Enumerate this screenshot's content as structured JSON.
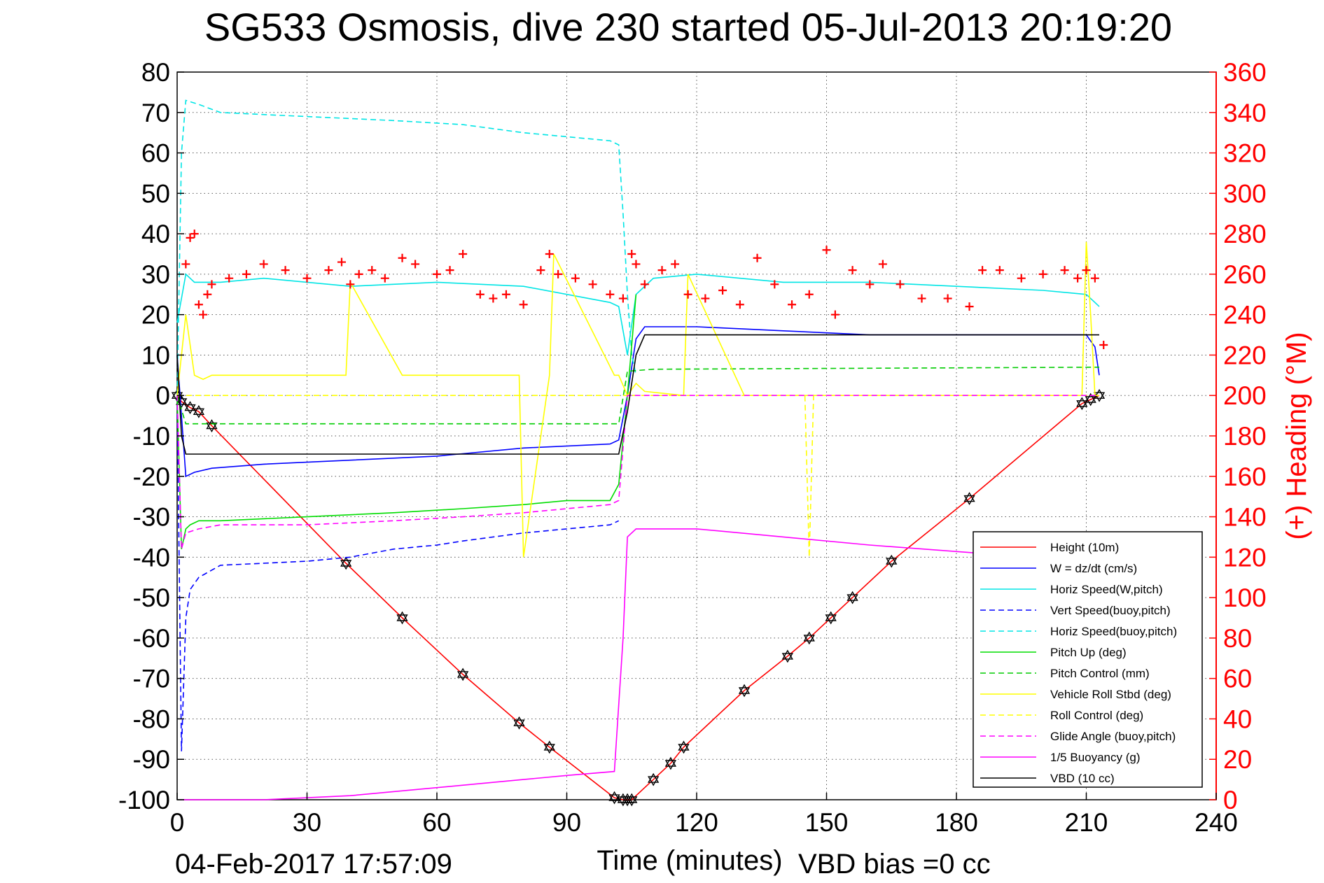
{
  "chart_data": {
    "type": "line",
    "title": "SG533 Osmosis, dive 230 started 05-Jul-2013 20:19:20",
    "xlabel": "Time (minutes)",
    "ylabel": "",
    "ylabel_right": "(+) Heading (°M)",
    "xlim": [
      0,
      240
    ],
    "ylim": [
      -100,
      80
    ],
    "ylim_right": [
      0,
      360
    ],
    "grid": true,
    "legend_position": "bottom-right",
    "x_ticks": [
      "0",
      "30",
      "60",
      "90",
      "120",
      "150",
      "180",
      "210",
      "240"
    ],
    "y_ticks": [
      "80",
      "70",
      "60",
      "50",
      "40",
      "30",
      "20",
      "10",
      "0",
      "-10",
      "-20",
      "-30",
      "-40",
      "-50",
      "-60",
      "-70",
      "-80",
      "-90",
      "-100"
    ],
    "y_ticks_right": [
      "360",
      "340",
      "320",
      "300",
      "280",
      "260",
      "240",
      "220",
      "200",
      "180",
      "160",
      "140",
      "120",
      "100",
      "80",
      "60",
      "40",
      "20",
      "0"
    ],
    "footer_left": "04-Feb-2017 17:57:09",
    "footer_right": "VBD bias =0 cc",
    "series": [
      {
        "name": "Height (10m)",
        "color": "#ff0000",
        "style": "solid",
        "marker": "hexagram",
        "x": [
          0,
          1,
          3,
          5,
          8,
          39,
          52,
          66,
          79,
          86,
          101,
          103,
          104,
          105,
          110,
          114,
          117,
          131,
          141,
          146,
          151,
          156,
          165,
          183,
          209,
          211,
          213
        ],
        "y": [
          0,
          -1.5,
          -3,
          -4,
          -7.5,
          -41.5,
          -55,
          -69,
          -81,
          -87,
          -99.5,
          -100,
          -100,
          -100,
          -95,
          -91,
          -87,
          -73,
          -64.5,
          -60,
          -55,
          -50,
          -41,
          -25.5,
          -2,
          -1,
          0
        ]
      },
      {
        "name": "W = dz/dt (cm/s)",
        "color": "#0000ff",
        "style": "solid",
        "x": [
          0,
          1,
          2,
          4,
          8,
          20,
          40,
          60,
          80,
          100,
          102,
          104,
          106,
          108,
          120,
          140,
          160,
          180,
          200,
          210,
          212,
          213
        ],
        "y": [
          10,
          -5,
          -20,
          -19,
          -18,
          -17,
          -16,
          -15,
          -13,
          -12,
          -11,
          0,
          14,
          17,
          17,
          16,
          15,
          15,
          15,
          15,
          12,
          5
        ]
      },
      {
        "name": "Horiz Speed(W,pitch)",
        "color": "#00e5e5",
        "style": "solid",
        "x": [
          0,
          2,
          4,
          10,
          20,
          40,
          60,
          80,
          100,
          102,
          104,
          106,
          110,
          120,
          140,
          160,
          180,
          200,
          210,
          213
        ],
        "y": [
          18,
          30,
          28,
          28,
          29,
          27,
          28,
          27,
          23,
          22,
          10,
          25,
          29,
          30,
          28,
          28,
          27,
          26,
          25,
          22
        ]
      },
      {
        "name": "Vert Speed(buoy,pitch)",
        "color": "#0000ff",
        "style": "dashed",
        "x": [
          0,
          1,
          2,
          3,
          5,
          10,
          30,
          40,
          50,
          60,
          66,
          80,
          90,
          100,
          102
        ],
        "y": [
          0,
          -88,
          -55,
          -48,
          -45,
          -42,
          -41,
          -40,
          -38,
          -37,
          -36,
          -34,
          -33,
          -32,
          -31
        ]
      },
      {
        "name": "Horiz Speed(buoy,pitch)",
        "color": "#00e5e5",
        "style": "dashed",
        "x": [
          0,
          1,
          2,
          5,
          10,
          30,
          50,
          66,
          80,
          90,
          100,
          102,
          103,
          104,
          105,
          106
        ],
        "y": [
          0,
          60,
          73,
          72,
          70,
          69,
          68,
          67,
          65,
          64,
          63,
          62,
          45,
          25,
          10,
          5
        ]
      },
      {
        "name": "Pitch Up (deg)",
        "color": "#00dd00",
        "style": "solid",
        "x": [
          0,
          1,
          2,
          3,
          5,
          10,
          30,
          50,
          66,
          80,
          90,
          100,
          102,
          104,
          106
        ],
        "y": [
          0,
          -38,
          -33,
          -32,
          -31,
          -31,
          -30,
          -29,
          -28,
          -27,
          -26,
          -26,
          -22,
          0,
          25
        ]
      },
      {
        "name": "Pitch Control (mm)",
        "color": "#00cc00",
        "style": "dashed",
        "x": [
          0,
          2,
          102,
          104,
          110,
          213
        ],
        "y": [
          0,
          -7,
          -7,
          6,
          6.5,
          7
        ]
      },
      {
        "name": "Vehicle Roll Stbd (deg)",
        "color": "#ffff00",
        "style": "solid",
        "x": [
          0,
          2,
          4,
          6,
          8,
          39,
          40,
          52,
          66,
          79,
          80,
          86,
          87,
          101,
          102,
          104,
          106,
          108,
          117,
          118,
          131,
          141,
          146,
          151,
          156,
          165,
          183,
          209,
          210,
          211,
          212,
          213
        ],
        "y": [
          0,
          20,
          5,
          4,
          5,
          5,
          28,
          5,
          5,
          5,
          -40,
          5,
          35,
          5,
          5,
          0,
          3,
          1,
          0,
          30,
          0,
          0,
          0,
          0,
          0,
          0,
          0,
          0,
          38,
          20,
          0,
          0
        ]
      },
      {
        "name": "Roll Control (deg)",
        "color": "#ffff00",
        "style": "dashed",
        "x": [
          0,
          10,
          39,
          66,
          87,
          104,
          106,
          145,
          146,
          147,
          213
        ],
        "y": [
          0,
          0,
          0,
          0,
          0,
          0,
          0,
          0,
          -40,
          0,
          0
        ]
      },
      {
        "name": "Glide Angle (buoy,pitch)",
        "color": "#ff00ff",
        "style": "dashed",
        "x": [
          0,
          1,
          2,
          5,
          10,
          30,
          50,
          66,
          80,
          100,
          102,
          104,
          213
        ],
        "y": [
          0,
          -38,
          -34,
          -33,
          -32,
          -32,
          -31,
          -30,
          -29,
          -27,
          -26,
          0,
          0
        ]
      },
      {
        "name": "1/5 Buoyancy (g)",
        "color": "#ff00ff",
        "style": "solid",
        "x": [
          1,
          2,
          20,
          40,
          60,
          80,
          90,
          101,
          103,
          104,
          106,
          120,
          140,
          160,
          185
        ],
        "y": [
          -100,
          -100,
          -100,
          -99,
          -97,
          -95,
          -94,
          -93,
          -60,
          -35,
          -33,
          -33,
          -35,
          -37,
          -39
        ]
      },
      {
        "name": "VBD (10 cc)",
        "color": "#000000",
        "style": "solid",
        "x": [
          0,
          1,
          2,
          3,
          8,
          20,
          60,
          100,
          102,
          104,
          106,
          108,
          120,
          160,
          180,
          213
        ],
        "y": [
          10,
          -10,
          -14.5,
          -14.5,
          -14.5,
          -14.5,
          -14.5,
          -14.5,
          -14.5,
          -4,
          10,
          15,
          15,
          15,
          15,
          15
        ]
      },
      {
        "name": "Heading",
        "color": "#ff0000",
        "style": "markers",
        "axis": "right",
        "marker": "plus",
        "x": [
          2,
          3,
          4,
          5,
          6,
          7,
          8,
          12,
          16,
          20,
          25,
          30,
          35,
          38,
          40,
          42,
          45,
          48,
          52,
          55,
          60,
          63,
          66,
          70,
          73,
          76,
          80,
          84,
          86,
          88,
          92,
          96,
          100,
          103,
          105,
          106,
          108,
          112,
          115,
          118,
          122,
          126,
          130,
          134,
          138,
          142,
          146,
          150,
          152,
          156,
          160,
          163,
          167,
          172,
          178,
          183,
          186,
          190,
          195,
          200,
          205,
          208,
          210,
          212,
          214
        ],
        "y": [
          265,
          278,
          280,
          245,
          240,
          250,
          255,
          258,
          260,
          265,
          262,
          258,
          262,
          266,
          255,
          260,
          262,
          258,
          268,
          265,
          260,
          262,
          270,
          250,
          248,
          250,
          245,
          262,
          270,
          260,
          258,
          255,
          250,
          248,
          270,
          265,
          255,
          262,
          265,
          250,
          248,
          252,
          245,
          268,
          255,
          245,
          250,
          272,
          240,
          262,
          255,
          265,
          255,
          248,
          248,
          244,
          262,
          262,
          258,
          260,
          262,
          258,
          262,
          258,
          225
        ]
      }
    ]
  }
}
